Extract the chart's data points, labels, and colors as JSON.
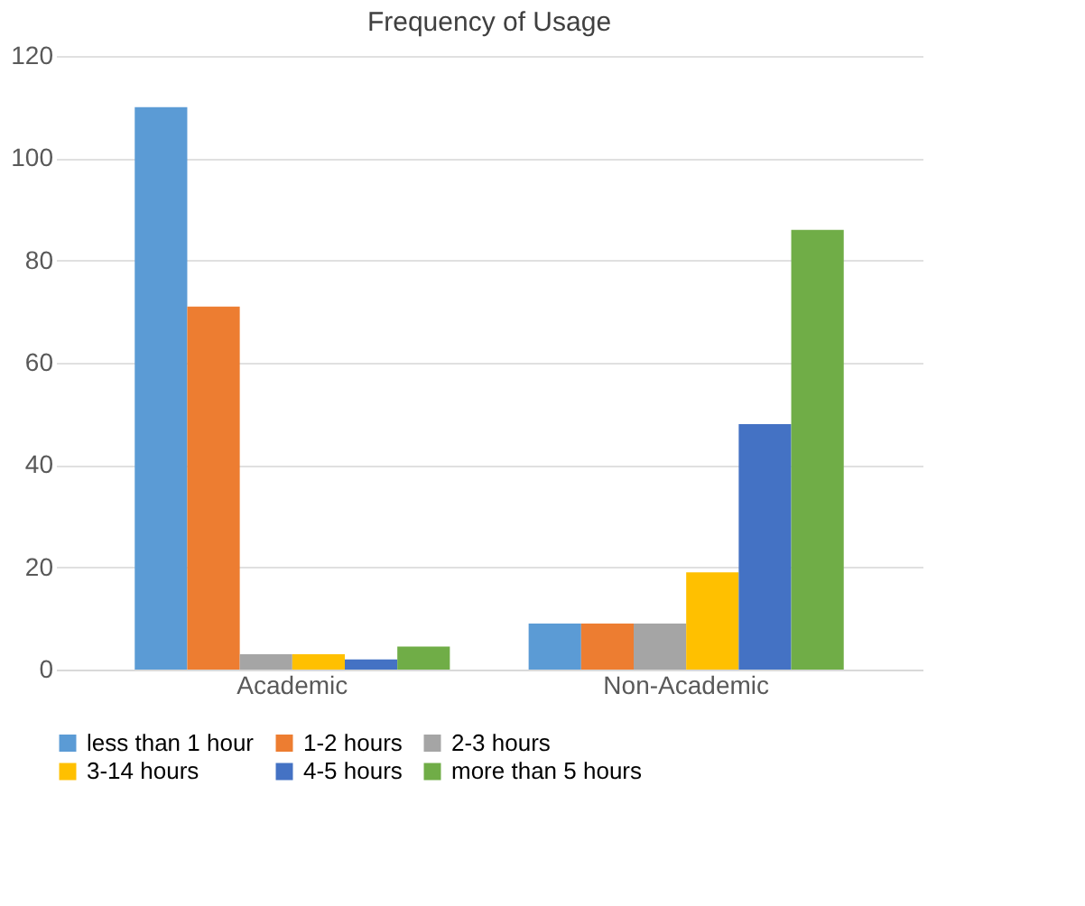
{
  "chart_data": {
    "type": "bar",
    "title": "Frequency of Usage",
    "categories": [
      "Academic",
      "Non-Academic"
    ],
    "series": [
      {
        "name": "less than 1 hour",
        "color": "#5b9bd5",
        "values": [
          110,
          9
        ]
      },
      {
        "name": "1-2 hours",
        "color": "#ed7d31",
        "values": [
          71,
          9
        ]
      },
      {
        "name": "2-3 hours",
        "color": "#a5a5a5",
        "values": [
          3,
          9
        ]
      },
      {
        "name": "3-14 hours",
        "color": "#ffc000",
        "values": [
          3,
          19
        ]
      },
      {
        "name": "4-5 hours",
        "color": "#4472c4",
        "values": [
          2,
          48
        ]
      },
      {
        "name": "more than 5 hours",
        "color": "#70ad47",
        "values": [
          4.5,
          86
        ]
      }
    ],
    "ylim": [
      0,
      120
    ],
    "yticks": [
      0,
      20,
      40,
      60,
      80,
      100,
      120
    ],
    "grid": "y",
    "legend": "bottom"
  }
}
